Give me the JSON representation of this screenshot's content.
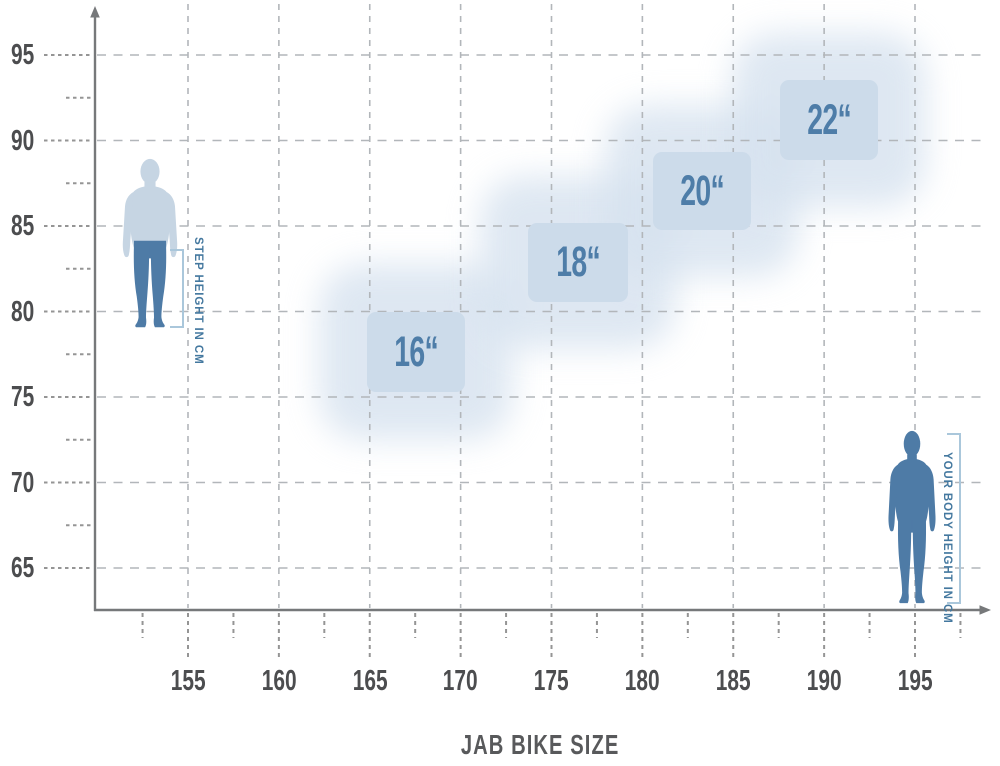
{
  "chart_title": "JAB BIKE SIZE",
  "annotations": {
    "step_height_label": "STEP HEIGHT IN CM",
    "body_height_label": "YOUR BODY HEIGHT IN CM"
  },
  "colors": {
    "size_box_fill": "#ccdbea",
    "size_box_glow": "#d6e2ef",
    "size_label_text": "#4e7da8",
    "figure_light": "#c6d5e3",
    "figure_dark": "#4e7ba6",
    "bracket": "#aac7db",
    "annotation_text": "#44789f",
    "axis": "#76787a",
    "tick_label": "#4c4d4f",
    "grid_light": "#b2b6ba",
    "grid_dense": "#959595",
    "title_text": "#58595b"
  },
  "chart_data": {
    "type": "heatmap",
    "title": "JAB BIKE SIZE",
    "xlabel": "YOUR BODY HEIGHT IN CM",
    "ylabel": "STEP HEIGHT IN CM",
    "x_ticks": [
      155,
      160,
      165,
      170,
      175,
      180,
      185,
      190,
      195
    ],
    "y_ticks": [
      65,
      70,
      75,
      80,
      85,
      90,
      95
    ],
    "x_minor_step": 2.5,
    "y_minor_step": 2.5,
    "xlim": [
      150,
      198.5
    ],
    "ylim": [
      62.5,
      97.5
    ],
    "grid": true,
    "legend_position": "none",
    "series": [
      {
        "name": "16“",
        "body_height_cm": [
          165,
          170
        ],
        "step_height_cm": [
          75.5,
          80
        ]
      },
      {
        "name": "18“",
        "body_height_cm": [
          172.5,
          178.5
        ],
        "step_height_cm": [
          80.5,
          85.5
        ]
      },
      {
        "name": "20“",
        "body_height_cm": [
          180.5,
          186
        ],
        "step_height_cm": [
          85,
          89.5
        ]
      },
      {
        "name": "22“",
        "body_height_cm": [
          187.5,
          193.5
        ],
        "step_height_cm": [
          89,
          93.5
        ]
      }
    ]
  }
}
